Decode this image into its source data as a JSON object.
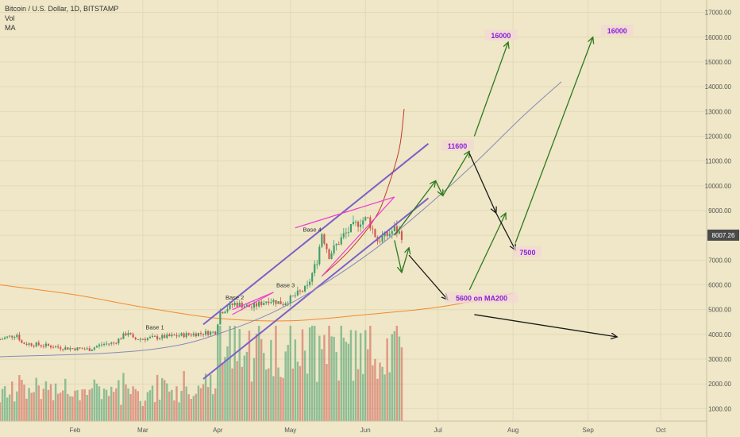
{
  "legend": {
    "title": "Bitcoin / U.S. Dollar, 1D, BITSTAMP",
    "vol": "Vol",
    "ma": "MA"
  },
  "chart_data": {
    "type": "candlestick",
    "y_axis": {
      "ticks": [
        1000,
        2000,
        3000,
        4000,
        5000,
        6000,
        7000,
        8000,
        9000,
        10000,
        11000,
        12000,
        13000,
        14000,
        15000,
        16000,
        17000
      ],
      "tick_labels": [
        "1000.00",
        "2000.00",
        "3000.00",
        "4000.00",
        "5000.00",
        "6000.00",
        "7000.00",
        "8000.00",
        "9000.00",
        "10000.00",
        "11000.00",
        "12000.00",
        "13000.00",
        "14000.00",
        "15000.00",
        "16000.00",
        "17000.00"
      ],
      "range": [
        500,
        17500
      ]
    },
    "x_axis": {
      "range": [
        "2019-01-01",
        "2019-10-20"
      ],
      "ticks": [
        {
          "date": "2019-02-01",
          "label": "Feb"
        },
        {
          "date": "2019-03-01",
          "label": "Mar"
        },
        {
          "date": "2019-04-01",
          "label": "Apr"
        },
        {
          "date": "2019-05-01",
          "label": "May"
        },
        {
          "date": "2019-06-01",
          "label": "Jun"
        },
        {
          "date": "2019-07-01",
          "label": "Jul"
        },
        {
          "date": "2019-08-01",
          "label": "Aug"
        },
        {
          "date": "2019-09-01",
          "label": "Sep"
        },
        {
          "date": "2019-10-01",
          "label": "Oct"
        }
      ]
    },
    "current_price": {
      "value": 8007.26,
      "label": "8007.26",
      "color": "#4a4a4a"
    },
    "price_path": [
      [
        "2019-01-01",
        3800
      ],
      [
        "2019-01-08",
        4000
      ],
      [
        "2019-01-10",
        3650
      ],
      [
        "2019-01-20",
        3550
      ],
      [
        "2019-01-28",
        3450
      ],
      [
        "2019-02-07",
        3400
      ],
      [
        "2019-02-12",
        3600
      ],
      [
        "2019-02-17",
        3650
      ],
      [
        "2019-02-23",
        4100
      ],
      [
        "2019-02-25",
        3800
      ],
      [
        "2019-03-10",
        3900
      ],
      [
        "2019-03-20",
        4000
      ],
      [
        "2019-03-31",
        4100
      ],
      [
        "2019-04-02",
        4900
      ],
      [
        "2019-04-08",
        5250
      ],
      [
        "2019-04-15",
        5100
      ],
      [
        "2019-04-22",
        5400
      ],
      [
        "2019-04-28",
        5250
      ],
      [
        "2019-05-08",
        5900
      ],
      [
        "2019-05-12",
        7000
      ],
      [
        "2019-05-14",
        8100
      ],
      [
        "2019-05-17",
        7200
      ],
      [
        "2019-05-23",
        8000
      ],
      [
        "2019-05-30",
        8600
      ],
      [
        "2019-06-02",
        8650
      ],
      [
        "2019-06-06",
        7800
      ],
      [
        "2019-06-10",
        8000
      ],
      [
        "2019-06-13",
        8250
      ],
      [
        "2019-06-16",
        8007
      ]
    ],
    "ma200": [
      [
        "2019-01-01",
        6000
      ],
      [
        "2019-02-01",
        5600
      ],
      [
        "2019-03-01",
        5100
      ],
      [
        "2019-04-01",
        4650
      ],
      [
        "2019-05-01",
        4550
      ],
      [
        "2019-06-01",
        4800
      ],
      [
        "2019-07-01",
        5100
      ],
      [
        "2019-08-01",
        5650
      ]
    ],
    "drawings": {
      "channel_upper": [
        [
          "2019-03-26",
          4400
        ],
        [
          "2019-06-27",
          11700
        ]
      ],
      "channel_lower": [
        [
          "2019-03-26",
          2200
        ],
        [
          "2019-06-27",
          9500
        ]
      ],
      "curve_points": [
        [
          "2019-01-01",
          3100
        ],
        [
          "2019-02-15",
          3250
        ],
        [
          "2019-03-15",
          3550
        ],
        [
          "2019-04-05",
          4150
        ],
        [
          "2019-04-25",
          4950
        ],
        [
          "2019-05-15",
          6050
        ],
        [
          "2019-06-05",
          7450
        ],
        [
          "2019-06-25",
          9050
        ],
        [
          "2019-07-15",
          10800
        ],
        [
          "2019-08-05",
          12800
        ],
        [
          "2019-08-21",
          14200
        ]
      ],
      "parabola_red": [
        [
          "2019-05-14",
          6350
        ],
        [
          "2019-05-25",
          7350
        ],
        [
          "2019-06-05",
          8700
        ],
        [
          "2019-06-10",
          9850
        ],
        [
          "2019-06-15",
          11500
        ],
        [
          "2019-06-17",
          13100
        ]
      ],
      "wedge": [
        [
          [
            "2019-05-03",
            8300
          ],
          [
            "2019-06-13",
            9550
          ]
        ],
        [
          [
            "2019-05-14",
            6350
          ],
          [
            "2019-06-13",
            9550
          ]
        ],
        [
          [
            "2019-04-07",
            5000
          ],
          [
            "2019-04-24",
            5700
          ]
        ],
        [
          [
            "2019-04-07",
            4800
          ],
          [
            "2019-04-24",
            5700
          ]
        ]
      ],
      "arrows": [
        {
          "color": "#2d7a1e",
          "from": [
            "2019-06-13",
            8000
          ],
          "to": [
            "2019-06-30",
            10200
          ]
        },
        {
          "color": "#2d7a1e",
          "from": [
            "2019-06-30",
            10200
          ],
          "to": [
            "2019-07-03",
            9600
          ]
        },
        {
          "color": "#2d7a1e",
          "from": [
            "2019-07-03",
            9600
          ],
          "to": [
            "2019-07-14",
            11400
          ]
        },
        {
          "color": "#2d7a1e",
          "from": [
            "2019-07-16",
            12000
          ],
          "to": [
            "2019-07-30",
            15800
          ]
        },
        {
          "color": "#2d7a1e",
          "from": [
            "2019-06-13",
            7800
          ],
          "to": [
            "2019-06-16",
            6500
          ]
        },
        {
          "color": "#2d7a1e",
          "from": [
            "2019-06-16",
            6500
          ],
          "to": [
            "2019-06-19",
            7500
          ]
        },
        {
          "color": "#1a1a1a",
          "from": [
            "2019-06-19",
            7200
          ],
          "to": [
            "2019-07-05",
            5400
          ]
        },
        {
          "color": "#2d7a1e",
          "from": [
            "2019-07-14",
            5800
          ],
          "to": [
            "2019-07-29",
            8900
          ]
        },
        {
          "color": "#1a1a1a",
          "from": [
            "2019-07-14",
            11300
          ],
          "to": [
            "2019-07-25",
            8900
          ]
        },
        {
          "color": "#1a1a1a",
          "from": [
            "2019-07-25",
            8900
          ],
          "to": [
            "2019-08-02",
            7400
          ]
        },
        {
          "color": "#2d7a1e",
          "from": [
            "2019-08-02",
            7700
          ],
          "to": [
            "2019-09-03",
            16000
          ]
        },
        {
          "color": "#1a1a1a",
          "from": [
            "2019-07-16",
            4800
          ],
          "to": [
            "2019-09-13",
            3900
          ]
        }
      ]
    },
    "annotations": [
      {
        "text": "Base 1",
        "x": "2019-03-06",
        "y": 4300,
        "color": "#333333"
      },
      {
        "text": "Base 2",
        "x": "2019-04-08",
        "y": 5500,
        "color": "#333333"
      },
      {
        "text": "Base 3",
        "x": "2019-04-29",
        "y": 6000,
        "color": "#333333"
      },
      {
        "text": "Base 4",
        "x": "2019-05-10",
        "y": 8250,
        "color": "#333333"
      },
      {
        "text": "16000",
        "x": "2019-07-27",
        "y": 16050,
        "color": "#8a1fd8",
        "box": true
      },
      {
        "text": "16000",
        "x": "2019-09-13",
        "y": 16250,
        "color": "#8a1fd8",
        "box": true
      },
      {
        "text": "11600",
        "x": "2019-07-09",
        "y": 11600,
        "color": "#8a1fd8",
        "box": true
      },
      {
        "text": "7500",
        "x": "2019-08-07",
        "y": 7300,
        "color": "#8a1fd8",
        "box": true
      },
      {
        "text": "5600 on MA200",
        "x": "2019-07-19",
        "y": 5450,
        "color": "#8a1fd8",
        "box": true
      }
    ],
    "colors": {
      "up": "#3e9d6b",
      "down": "#d0574f",
      "ma200": "#f28a2e",
      "channel": "#7b5fc9",
      "curve": "#8a8ab8",
      "wedge": "#f03bd2",
      "parabola": "#c0392b"
    }
  }
}
